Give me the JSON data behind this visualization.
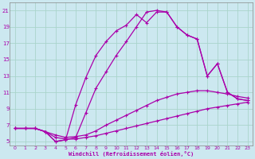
{
  "xlabel": "Windchill (Refroidissement éolien,°C)",
  "background_color": "#cce8f0",
  "line_color": "#aa00aa",
  "xlim": [
    -0.5,
    23.5
  ],
  "ylim": [
    4.5,
    22.0
  ],
  "xticks": [
    0,
    1,
    2,
    3,
    4,
    5,
    6,
    7,
    8,
    9,
    10,
    11,
    12,
    13,
    14,
    15,
    16,
    17,
    18,
    19,
    20,
    21,
    22,
    23
  ],
  "yticks": [
    5,
    7,
    9,
    11,
    13,
    15,
    17,
    19,
    21
  ],
  "grid_color": "#aad4cc",
  "line1_x": [
    0,
    1,
    2,
    3,
    4,
    5,
    6,
    7,
    8,
    9,
    10,
    11,
    12,
    13,
    14,
    15,
    16,
    17,
    18,
    19,
    20,
    21,
    22,
    23
  ],
  "line1_y": [
    6.6,
    6.6,
    6.6,
    6.2,
    5.5,
    5.3,
    5.3,
    5.5,
    5.7,
    6.0,
    6.3,
    6.6,
    6.9,
    7.2,
    7.5,
    7.8,
    8.1,
    8.4,
    8.7,
    9.0,
    9.2,
    9.4,
    9.6,
    9.8
  ],
  "line2_x": [
    0,
    1,
    2,
    3,
    4,
    5,
    6,
    7,
    8,
    9,
    10,
    11,
    12,
    13,
    14,
    15,
    16,
    17,
    18,
    19,
    20,
    21,
    22,
    23
  ],
  "line2_y": [
    6.6,
    6.6,
    6.6,
    6.2,
    5.8,
    5.5,
    5.6,
    5.8,
    6.3,
    7.0,
    7.6,
    8.2,
    8.8,
    9.4,
    10.0,
    10.4,
    10.8,
    11.0,
    11.2,
    11.2,
    11.0,
    10.8,
    10.5,
    10.3
  ],
  "line3_x": [
    0,
    1,
    2,
    3,
    4,
    5,
    6,
    7,
    8,
    9,
    10,
    11,
    12,
    13,
    14,
    15,
    16,
    17,
    18,
    19,
    20,
    21,
    22,
    23
  ],
  "line3_y": [
    6.6,
    6.6,
    6.6,
    6.2,
    5.0,
    5.2,
    9.5,
    12.8,
    15.5,
    17.2,
    18.5,
    19.2,
    20.5,
    19.5,
    20.8,
    20.8,
    19.0,
    18.0,
    17.5,
    13.0,
    14.5,
    11.0,
    10.2,
    10.0
  ],
  "line4_x": [
    0,
    1,
    2,
    3,
    4,
    5,
    6,
    7,
    8,
    9,
    10,
    11,
    12,
    13,
    14,
    15,
    16,
    17,
    18,
    19,
    20,
    21,
    22,
    23
  ],
  "line4_y": [
    6.6,
    6.6,
    6.6,
    6.2,
    5.0,
    5.2,
    5.5,
    8.5,
    11.5,
    13.5,
    15.5,
    17.2,
    19.0,
    20.8,
    21.0,
    20.8,
    19.0,
    18.0,
    17.5,
    13.0,
    14.5,
    11.0,
    10.2,
    10.0
  ]
}
